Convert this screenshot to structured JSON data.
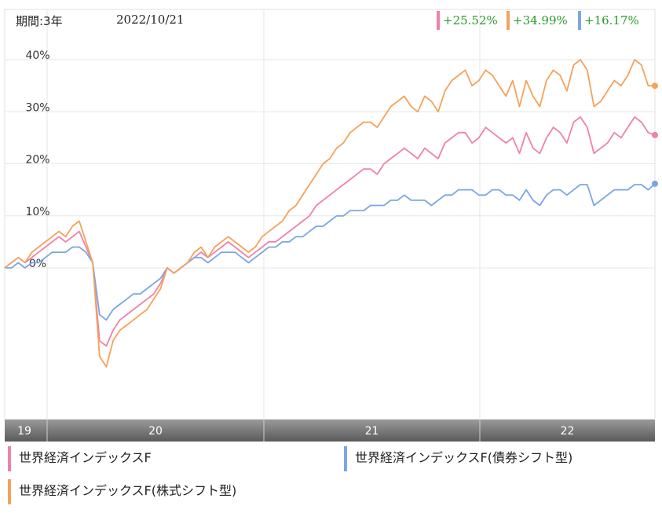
{
  "header": {
    "period": "期間:3年",
    "date": "2022/10/21"
  },
  "badges": [
    {
      "text": "+25.52%",
      "color": "#ee82a8"
    },
    {
      "text": "+34.99%",
      "color": "#f5a25a"
    },
    {
      "text": "+16.17%",
      "color": "#7aa6e6"
    }
  ],
  "legend": [
    {
      "label": "世界経済インデックスF",
      "color": "#ee82a8"
    },
    {
      "label": "世界経済インデックスF(債券シフト型)",
      "color": "#7aa6e6"
    },
    {
      "label": "世界経済インデックスF(株式シフト型)",
      "color": "#f5a25a"
    }
  ],
  "chart_data": {
    "type": "line",
    "x_axis": {
      "tick_labels": [
        "19",
        "20",
        "21",
        "22"
      ]
    },
    "y_axis": {
      "tick_labels": [
        "40%",
        "30%",
        "20%",
        "10%",
        "0%"
      ],
      "ticks": [
        40,
        30,
        20,
        10,
        0
      ],
      "range": [
        -30,
        45
      ]
    },
    "grid": true,
    "legend_position": "bottom",
    "series": [
      {
        "name": "世界経済インデックスF",
        "color": "#ee82a8",
        "final_value": 25.52,
        "values": [
          0,
          1,
          2,
          1,
          2,
          3,
          4,
          5,
          6,
          5,
          6,
          7,
          4,
          1,
          -14,
          -15,
          -12,
          -10,
          -9,
          -8,
          -7,
          -6,
          -5,
          -3,
          0,
          -1,
          0,
          1,
          2,
          3,
          2,
          3,
          4,
          5,
          4,
          3,
          2,
          3,
          4,
          5,
          5,
          6,
          7,
          8,
          9,
          10,
          12,
          13,
          14,
          15,
          16,
          17,
          18,
          19,
          19,
          18,
          20,
          21,
          22,
          23,
          22,
          21,
          23,
          22,
          21,
          24,
          25,
          26,
          26,
          24,
          25,
          27,
          26,
          25,
          24,
          25,
          22,
          26,
          23,
          22,
          25,
          27,
          26,
          24,
          28,
          29,
          27,
          22,
          23,
          24,
          26,
          25,
          27,
          29,
          28,
          26,
          25.52
        ]
      },
      {
        "name": "世界経済インデックスF(債券シフト型)",
        "color": "#7aa6e6",
        "final_value": 16.17,
        "values": [
          0,
          0,
          1,
          0,
          1,
          1,
          2,
          3,
          3,
          3,
          4,
          4,
          3,
          1,
          -9,
          -10,
          -8,
          -7,
          -6,
          -5,
          -5,
          -4,
          -3,
          -2,
          0,
          -1,
          0,
          1,
          2,
          2,
          1,
          2,
          3,
          3,
          3,
          2,
          1,
          2,
          3,
          4,
          4,
          5,
          5,
          6,
          6,
          7,
          8,
          8,
          9,
          10,
          10,
          11,
          11,
          11,
          12,
          12,
          12,
          13,
          13,
          14,
          13,
          13,
          13,
          12,
          13,
          14,
          14,
          15,
          15,
          15,
          14,
          14,
          15,
          15,
          14,
          14,
          13,
          15,
          13,
          12,
          14,
          15,
          15,
          14,
          15,
          16,
          16,
          12,
          13,
          14,
          15,
          15,
          15,
          16,
          16,
          15,
          16.17
        ]
      },
      {
        "name": "世界経済インデックスF(株式シフト型)",
        "color": "#f5a25a",
        "final_value": 34.99,
        "values": [
          0,
          1,
          2,
          1,
          3,
          4,
          5,
          6,
          7,
          6,
          8,
          9,
          5,
          1,
          -17,
          -19,
          -14,
          -12,
          -11,
          -10,
          -9,
          -8,
          -6,
          -4,
          0,
          -1,
          0,
          1,
          3,
          4,
          2,
          4,
          5,
          6,
          5,
          4,
          3,
          4,
          6,
          7,
          8,
          9,
          11,
          12,
          14,
          16,
          18,
          20,
          21,
          23,
          24,
          26,
          27,
          28,
          28,
          27,
          29,
          31,
          32,
          33,
          31,
          30,
          33,
          32,
          30,
          34,
          36,
          37,
          38,
          35,
          36,
          38,
          37,
          35,
          33,
          36,
          31,
          36,
          33,
          31,
          36,
          38,
          37,
          34,
          39,
          40,
          38,
          31,
          32,
          34,
          36,
          35,
          37,
          40,
          39,
          35,
          34.99
        ]
      }
    ]
  }
}
